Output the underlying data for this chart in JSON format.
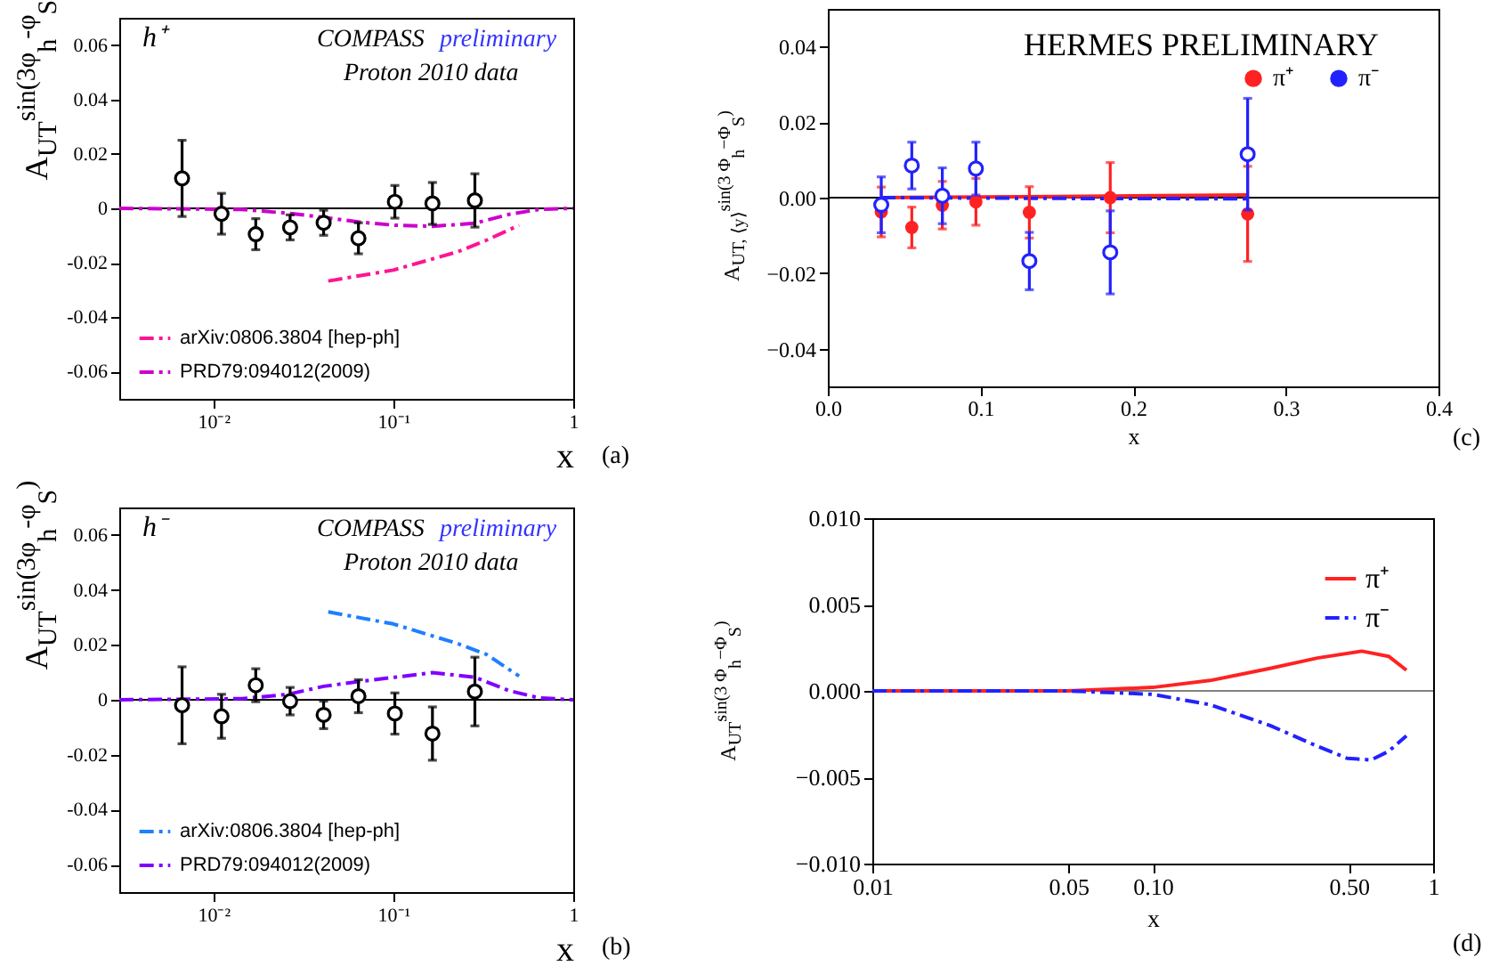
{
  "chart_data": [
    {
      "type": "scatter",
      "xlabel": "x",
      "ylabel": "A$_{UT}$$^{sin(3φ}$$_{h}$$^{-φ}$$_{S}$$^{)}$",
      "annotations": [
        "h⁺",
        "COMPASS",
        "preliminary",
        "Proton 2010 data",
        "(a)"
      ],
      "log": "x",
      "xlim": [
        0.003,
        1
      ],
      "xticks": [
        {
          "value": 0.01,
          "label": "10⁻²"
        },
        {
          "value": 0.1,
          "label": "10⁻¹"
        },
        1
      ],
      "ylim": [
        -0.07,
        0.07
      ],
      "yticks": [
        -0.06,
        -0.04,
        -0.02,
        0,
        0.02,
        0.04,
        0.06
      ],
      "legend": "bottom left",
      "ref_lines": [
        {
          "axis": "y",
          "value": 0,
          "color": "#000000"
        }
      ],
      "series": [
        {
          "color": "#000000",
          "marker": "circle",
          "x": [
            0.0067,
            0.0111,
            0.0172,
            0.0267,
            0.041,
            0.064,
            0.102,
            0.165,
            0.284
          ],
          "values": [
            0.011,
            -0.002,
            -0.0095,
            -0.007,
            -0.0053,
            -0.011,
            0.0024,
            0.0018,
            0.0029
          ],
          "errors": [
            0.014,
            0.0075,
            0.0057,
            0.0046,
            0.0046,
            0.0057,
            0.006,
            0.0077,
            0.0098
          ]
        },
        {
          "type": "line",
          "name": "arXiv:0806.3804 [hep-ph]",
          "color": "#ff1493",
          "line_style": "dashed",
          "x": [
            0.0435,
            0.1,
            0.227,
            0.33,
            0.5
          ],
          "values": [
            -0.0267,
            -0.0227,
            -0.016,
            -0.0117,
            -0.0062
          ]
        },
        {
          "type": "line",
          "name": "PRD79:094012(2009)",
          "color": "#cc00cc",
          "line_style": "dashed",
          "x": [
            0.003,
            0.0144,
            0.026,
            0.041,
            0.064,
            0.102,
            0.165,
            0.284,
            0.44,
            0.645,
            1
          ],
          "values": [
            0,
            -0.0004,
            -0.0018,
            -0.0033,
            -0.005,
            -0.0062,
            -0.0066,
            -0.0055,
            -0.0022,
            -0.0004,
            0
          ]
        }
      ]
    },
    {
      "type": "scatter",
      "xlabel": "x",
      "ylabel": "A$_{UT}$$^{sin(3φ}$$_{h}$$^{-φ}$$_{S}$$^{)}$",
      "annotations": [
        "h⁻",
        "COMPASS",
        "preliminary",
        "Proton 2010 data",
        "(b)"
      ],
      "log": "x",
      "xlim": [
        0.003,
        1
      ],
      "xticks": [
        {
          "value": 0.01,
          "label": "10⁻²"
        },
        {
          "value": 0.1,
          "label": "10⁻¹"
        },
        1
      ],
      "ylim": [
        -0.07,
        0.07
      ],
      "yticks": [
        -0.06,
        -0.04,
        -0.02,
        0,
        0.02,
        0.04,
        0.06
      ],
      "legend": "bottom left",
      "ref_lines": [
        {
          "axis": "y",
          "value": 0,
          "color": "#000000"
        }
      ],
      "series": [
        {
          "color": "#000000",
          "marker": "circle",
          "x": [
            0.0067,
            0.0111,
            0.0172,
            0.0267,
            0.041,
            0.064,
            0.102,
            0.165,
            0.284
          ],
          "values": [
            -0.002,
            -0.006,
            0.0053,
            -0.0005,
            -0.0055,
            0.0013,
            -0.005,
            -0.0123,
            0.003
          ],
          "errors": [
            0.014,
            0.008,
            0.006,
            0.005,
            0.005,
            0.006,
            0.0075,
            0.0097,
            0.0125
          ]
        },
        {
          "type": "line",
          "name": "arXiv:0806.3804 [hep-ph]",
          "color": "#1e7fff",
          "line_style": "dashed",
          "x": [
            0.0435,
            0.1,
            0.227,
            0.33,
            0.5
          ],
          "values": [
            0.032,
            0.0276,
            0.0205,
            0.0165,
            0.0086
          ]
        },
        {
          "type": "line",
          "name": "PRD79:094012(2009)",
          "color": "#8000ff",
          "line_style": "dashed",
          "x": [
            0.003,
            0.0144,
            0.026,
            0.041,
            0.064,
            0.102,
            0.165,
            0.284,
            0.44,
            0.645,
            1
          ],
          "values": [
            0,
            0.0004,
            0.002,
            0.0049,
            0.0066,
            0.0082,
            0.0099,
            0.0082,
            0.0033,
            0.0007,
            0
          ]
        }
      ]
    },
    {
      "type": "scatter",
      "xlabel": "x",
      "ylabel": "A$_{UT, ⟨y⟩}$$^{sin(3 Φ}$$_{h}$$^{−Φ}$$_{S}$$^{)}$",
      "annotations": [
        "HERMES PRELIMINARY",
        "(c)"
      ],
      "xlim": [
        0,
        0.4
      ],
      "xticks": [
        {
          "value": 0,
          "label": "0.0"
        },
        0.1,
        0.2,
        0.3,
        0.4
      ],
      "ylim": [
        -0.05,
        0.05
      ],
      "yticks": [
        {
          "value": -0.04,
          "label": "−0.04"
        },
        {
          "value": -0.02,
          "label": "−0.02"
        },
        {
          "value": 0,
          "label": "0.00"
        },
        0.02,
        0.04
      ],
      "legend": "top right",
      "ref_lines": [
        {
          "axis": "y",
          "value": 0,
          "color": "#000000"
        }
      ],
      "series": [
        {
          "name": "π⁺",
          "color": "#ff2222",
          "marker": "circle",
          "x": [
            0.035,
            0.055,
            0.075,
            0.097,
            0.132,
            0.185,
            0.275
          ],
          "values": [
            -0.0038,
            -0.0079,
            -0.002,
            -0.0011,
            -0.0039,
            0,
            -0.0043
          ],
          "errors": [
            0.0066,
            0.0054,
            0.0063,
            0.0062,
            0.0068,
            0.0093,
            0.0126
          ]
        },
        {
          "name": "π⁻",
          "color": "#2222ff",
          "marker": "circle",
          "x": [
            0.035,
            0.055,
            0.075,
            0.097,
            0.132,
            0.185,
            0.275
          ],
          "values": [
            -0.0019,
            0.0085,
            0.0005,
            0.0077,
            -0.0168,
            -0.0145,
            0.0115
          ],
          "errors": [
            0.0074,
            0.0062,
            0.0074,
            0.007,
            0.0076,
            0.011,
            0.0148
          ]
        },
        {
          "type": "line",
          "color": "#ff2222",
          "line_style": "solid",
          "x": [
            0.035,
            0.15,
            0.275
          ],
          "values": [
            0,
            0.0003,
            0.0007
          ]
        },
        {
          "type": "line",
          "color": "#2222ff",
          "line_style": "dashed",
          "x": [
            0.035,
            0.15,
            0.275
          ],
          "values": [
            0,
            -0.0002,
            -0.0003
          ]
        }
      ]
    },
    {
      "type": "line",
      "xlabel": "x",
      "ylabel": "A$_{UT}$$^{sin(3 Φ}$$_{h}$$^{−Φ}$$_{S}$$^{)}$",
      "annotations": [
        "(d)"
      ],
      "log": "x",
      "xlim": [
        0.01,
        1
      ],
      "xticks": [
        0.01,
        0.05,
        {
          "value": 0.1,
          "label": "0.10"
        },
        {
          "value": 0.5,
          "label": "0.50"
        },
        1
      ],
      "ylim": [
        -0.01,
        0.01
      ],
      "yticks": [
        {
          "value": -0.01,
          "label": "−0.010"
        },
        {
          "value": -0.005,
          "label": "−0.005"
        },
        {
          "value": 0,
          "label": "0.000"
        },
        0.005,
        {
          "value": 0.01,
          "label": "0.010"
        }
      ],
      "legend": "top right",
      "ref_lines": [
        {
          "axis": "y",
          "value": 0,
          "color": "#808080"
        }
      ],
      "series": [
        {
          "name": "π⁺",
          "color": "#ff2222",
          "line_style": "solid",
          "x": [
            0.01,
            0.05,
            0.1,
            0.16,
            0.262,
            0.386,
            0.557,
            0.694,
            0.803
          ],
          "values": [
            0,
            0,
            0.0002,
            0.0006,
            0.0013,
            0.0019,
            0.0023,
            0.002,
            0.0012
          ]
        },
        {
          "name": "π⁻",
          "color": "#2222ff",
          "line_style": "dashed",
          "x": [
            0.01,
            0.05,
            0.1,
            0.16,
            0.262,
            0.386,
            0.493,
            0.6,
            0.694,
            0.803
          ],
          "values": [
            0,
            0,
            -0.0002,
            -0.0008,
            -0.002,
            -0.0032,
            -0.0039,
            -0.004,
            -0.0035,
            -0.0026
          ]
        }
      ]
    }
  ]
}
